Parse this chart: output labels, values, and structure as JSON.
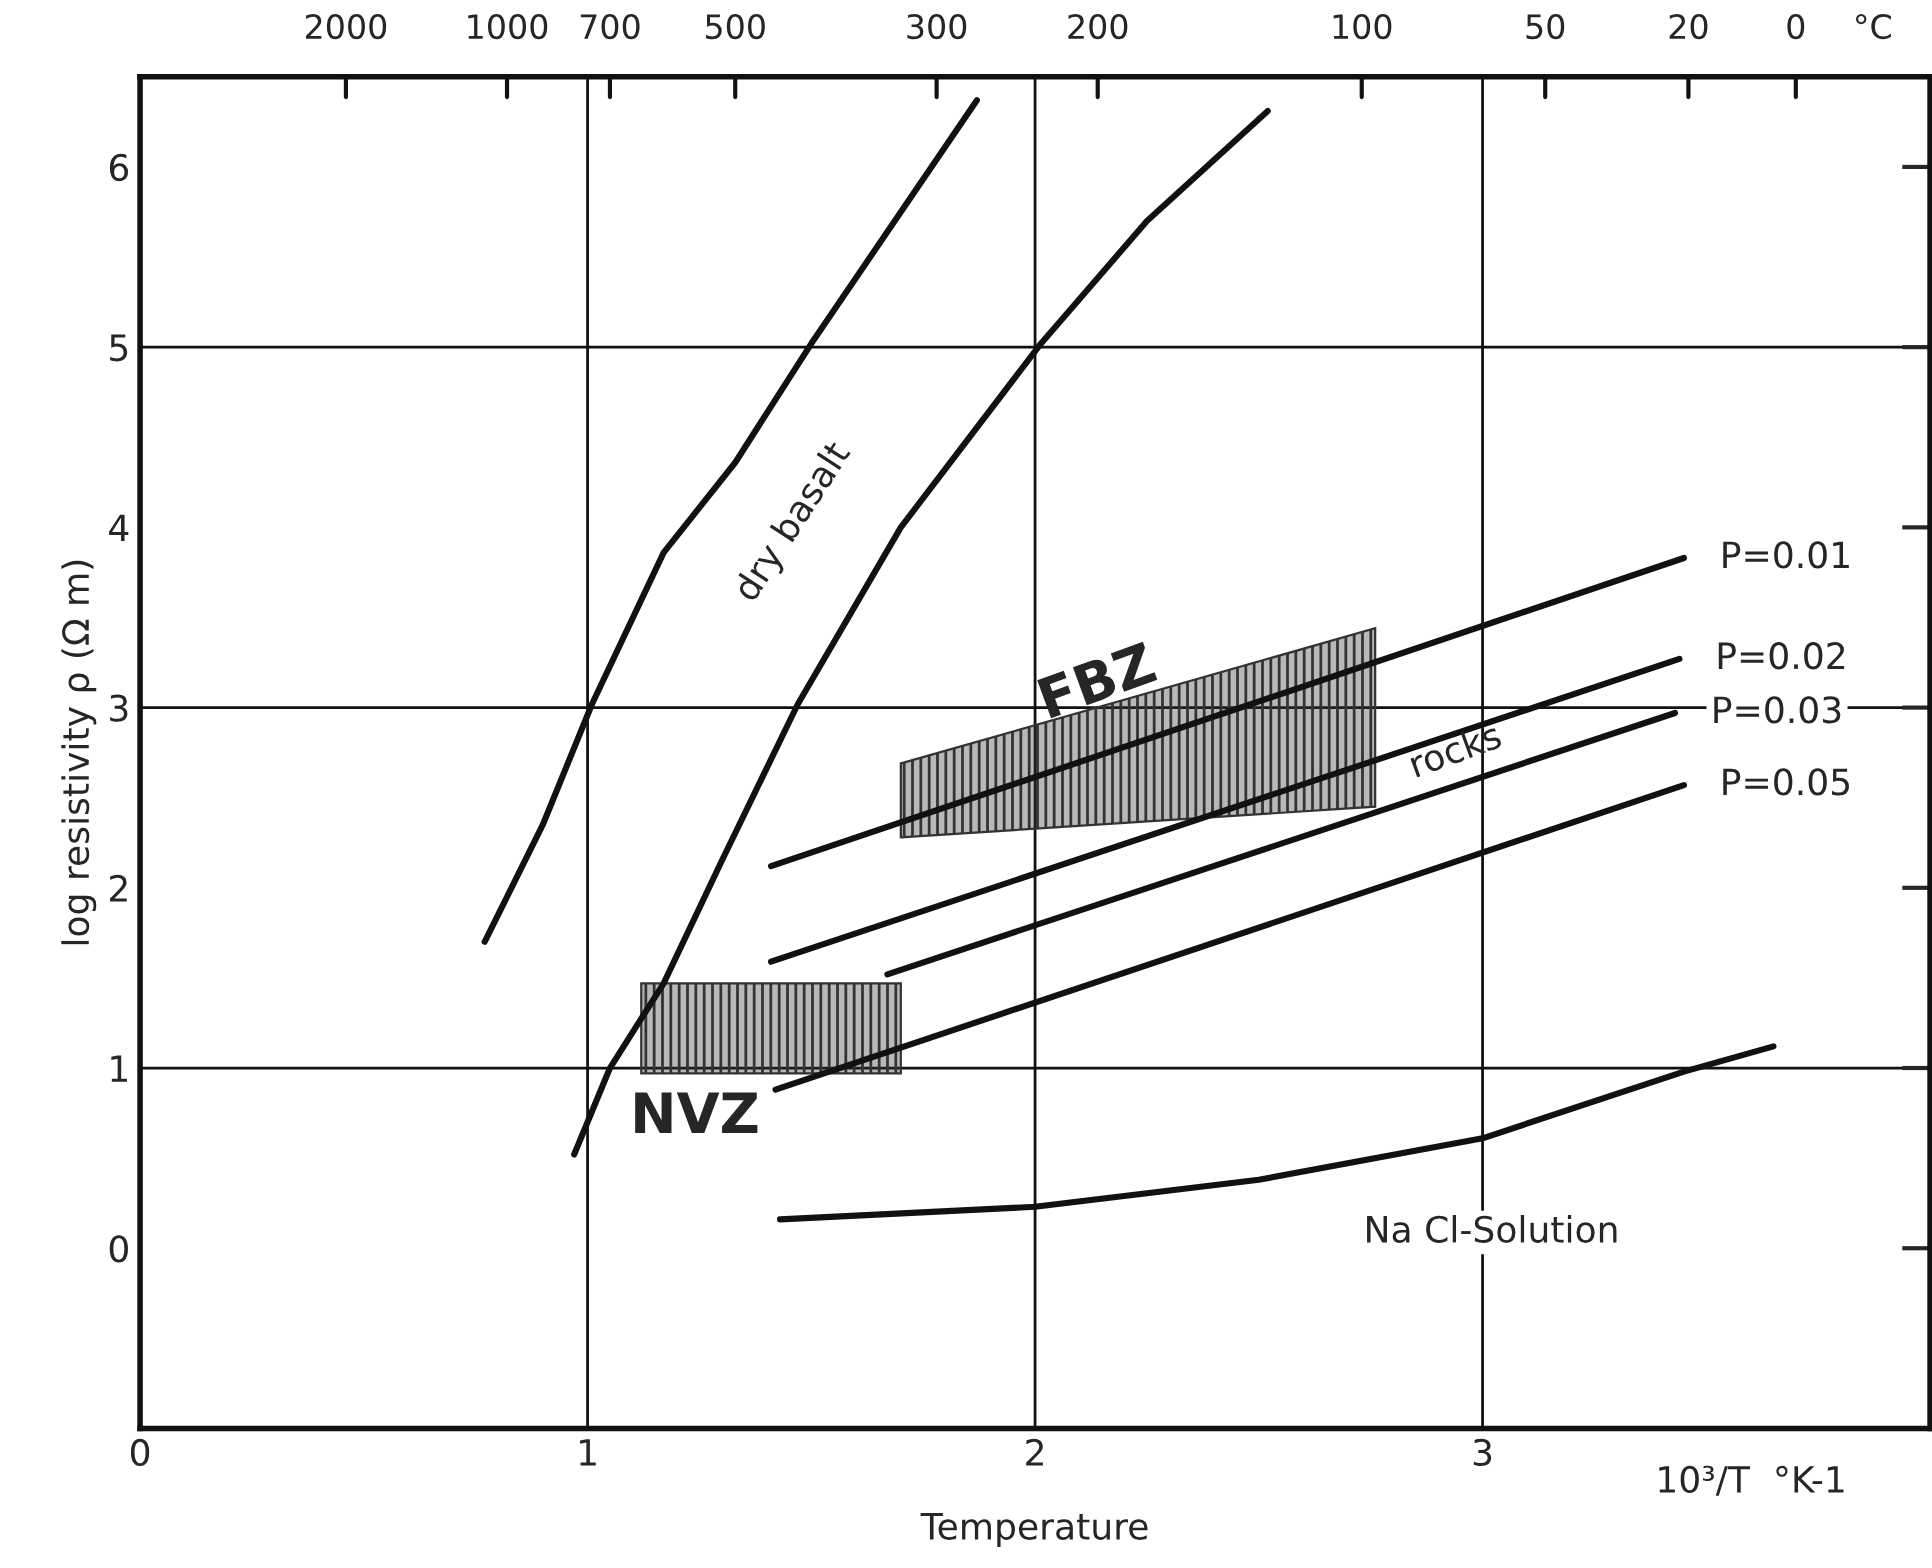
{
  "chart_data": {
    "type": "line",
    "xlabel": "Temperature",
    "ylabel": "log resistivity ρ (Ω m)",
    "xlim": [
      0,
      4
    ],
    "xticks": [
      0,
      1,
      2,
      3
    ],
    "ylim": [
      -1,
      6.5
    ],
    "yticks": [
      0,
      1,
      2,
      3,
      4,
      5,
      6
    ],
    "grid": "x",
    "ref_lines": [
      {
        "axis": "y",
        "value": 1,
        "label": null
      },
      {
        "axis": "y",
        "value": 3,
        "label": null
      },
      {
        "axis": "y",
        "value": 5,
        "label": null
      }
    ],
    "series": [
      {
        "color": "#111111",
        "x": [
          0.77,
          0.9,
          1.01,
          1.17,
          1.33,
          1.5,
          1.7,
          1.87
        ],
        "values": [
          1.7,
          2.35,
          3.02,
          3.86,
          4.36,
          5.02,
          5.75,
          6.37
        ]
      },
      {
        "color": "#111111",
        "x": [
          0.97,
          1.05,
          1.17,
          1.3,
          1.47,
          1.7,
          2.01,
          2.25,
          2.52
        ],
        "values": [
          0.52,
          1.0,
          1.47,
          2.15,
          3.02,
          4.0,
          5.01,
          5.7,
          6.31
        ]
      },
      {
        "name": "P=0.01",
        "color": "#111111",
        "x": [
          1.41,
          3.45
        ],
        "values": [
          2.12,
          3.83
        ]
      },
      {
        "name": "P=0.02",
        "color": "#111111",
        "x": [
          1.41,
          3.44
        ],
        "values": [
          1.59,
          3.27
        ]
      },
      {
        "name": "P=0.03",
        "color": "#111111",
        "x": [
          1.67,
          3.43
        ],
        "values": [
          1.52,
          2.97
        ]
      },
      {
        "name": "P=0.05",
        "color": "#111111",
        "x": [
          1.42,
          3.45
        ],
        "values": [
          0.88,
          2.57
        ]
      },
      {
        "color": "#111111",
        "x": [
          1.43,
          2.0,
          2.5,
          3.0,
          3.45,
          3.65
        ],
        "values": [
          0.16,
          0.23,
          0.38,
          0.61,
          0.98,
          1.12
        ]
      },
      {
        "type": "area",
        "color": "#333333",
        "x": [
          1.7,
          2.76,
          2.76,
          1.7
        ],
        "values": [
          2.28,
          2.45,
          3.44,
          2.69
        ]
      },
      {
        "type": "area",
        "color": "#333333",
        "x": [
          1.12,
          1.7,
          1.7,
          1.12
        ],
        "values": [
          0.97,
          0.97,
          1.47,
          1.47
        ]
      }
    ],
    "annotations": [
      "dry basalt",
      "FBZ",
      "NVZ",
      "rocks",
      "Na Cl-Solution",
      "10³/T  °K-1",
      "2000",
      "1000",
      "700",
      "500",
      "300",
      "200",
      "100",
      "50",
      "20",
      "0",
      "°C"
    ]
  }
}
